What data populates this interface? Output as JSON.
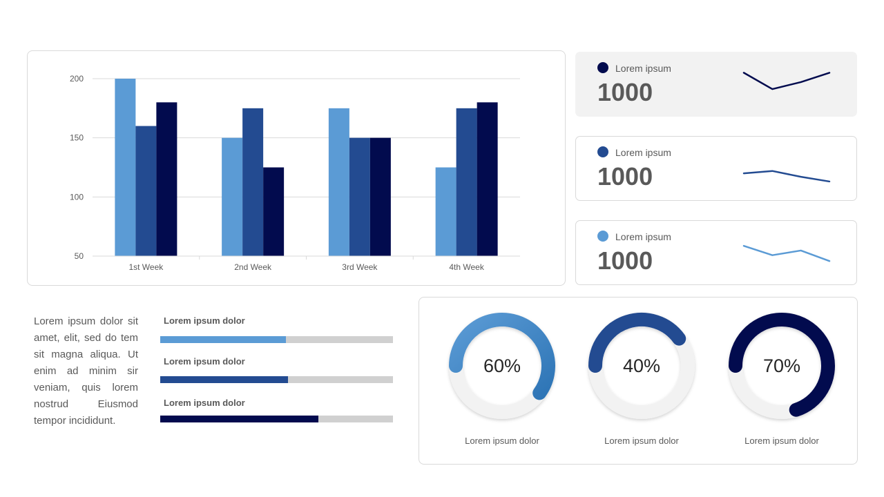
{
  "colors": {
    "light_blue": "#5b9bd5",
    "mid_blue": "#234b91",
    "navy": "#020b4e",
    "grid": "#d9d9d9",
    "track": "#d0d0d0"
  },
  "chart_data": [
    {
      "type": "bar",
      "categories": [
        "1st Week",
        "2nd Week",
        "3rd Week",
        "4th Week"
      ],
      "series": [
        {
          "values": [
            200,
            150,
            175,
            125
          ],
          "color": "#5b9bd5"
        },
        {
          "values": [
            160,
            175,
            150,
            175
          ],
          "color": "#234b91"
        },
        {
          "values": [
            180,
            125,
            150,
            180
          ],
          "color": "#020b4e"
        }
      ],
      "y_ticks": [
        "50",
        "100",
        "150",
        "200"
      ],
      "ylim": [
        50,
        200
      ],
      "grid": true,
      "legend": "none"
    },
    {
      "type": "line",
      "series": [
        {
          "values": [
            3.4,
            2.0,
            2.6,
            3.4
          ],
          "color": "#020b4e"
        }
      ]
    },
    {
      "type": "line",
      "series": [
        {
          "values": [
            2.0,
            2.2,
            1.7,
            1.3
          ],
          "color": "#234b91"
        }
      ]
    },
    {
      "type": "line",
      "series": [
        {
          "values": [
            3.0,
            2.2,
            2.6,
            1.7
          ],
          "color": "#5b9bd5"
        }
      ]
    },
    {
      "type": "pie",
      "values": [
        60,
        40,
        70
      ],
      "labels": [
        "60%",
        "40%",
        "70%"
      ]
    }
  ],
  "kpis": [
    {
      "label": "Lorem ipsum",
      "value": "1000",
      "color": "#020b4e"
    },
    {
      "label": "Lorem ipsum",
      "value": "1000",
      "color": "#234b91"
    },
    {
      "label": "Lorem ipsum",
      "value": "1000",
      "color": "#5b9bd5"
    }
  ],
  "summary_text": "Lorem ipsum dolor sit amet, elit, sed do tem sit magna aliqua. Ut enim ad minim sir veniam, quis lorem nostrud Eiusmod tempor incididunt.",
  "progress_bars": [
    {
      "label": "Lorem ipsum dolor",
      "percent": 54,
      "color": "#5b9bd5"
    },
    {
      "label": "Lorem ipsum dolor",
      "percent": 55,
      "color": "#234b91"
    },
    {
      "label": "Lorem ipsum dolor",
      "percent": 68,
      "color": "#020b4e"
    }
  ],
  "donuts": [
    {
      "percent": 60,
      "label": "60%",
      "caption": "Lorem ipsum dolor",
      "color": "#5b9bd5",
      "color_end": "#2e75b6"
    },
    {
      "percent": 40,
      "label": "40%",
      "caption": "Lorem ipsum dolor",
      "color": "#234b91",
      "color_end": "#234b91"
    },
    {
      "percent": 70,
      "label": "70%",
      "caption": "Lorem ipsum dolor",
      "color": "#020b4e",
      "color_end": "#020b4e"
    }
  ]
}
